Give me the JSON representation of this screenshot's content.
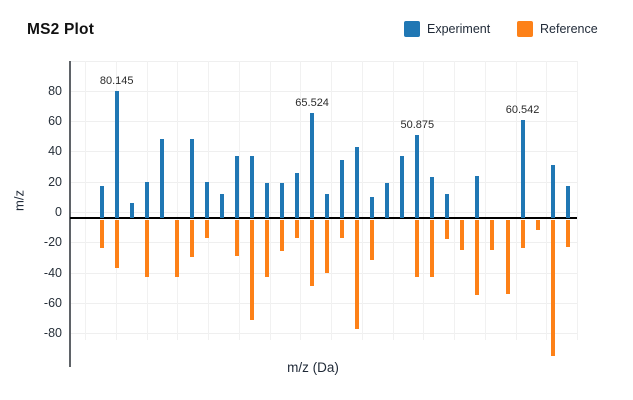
{
  "title": "MS2 Plot",
  "legend": {
    "items": [
      {
        "label": "Experiment",
        "color": "#2077b4"
      },
      {
        "label": "Reference",
        "color": "#fd8118"
      }
    ]
  },
  "axes": {
    "ylabel": "m/z",
    "xlabel": "m/z (Da)"
  },
  "chart_data": {
    "type": "bar",
    "subtype": "mirror-mass-spectrum",
    "title": "MS2 Plot",
    "xlabel": "m/z (Da)",
    "ylabel": "m/z",
    "grid": true,
    "legend_position": "top-right",
    "ylim": [
      -100,
      100
    ],
    "yticks": [
      80,
      60,
      40,
      20,
      0,
      -20,
      -40,
      -60,
      -80
    ],
    "n_peaks": 32,
    "series": [
      {
        "name": "Experiment",
        "color": "#2077b4",
        "direction": "up",
        "values": [
          17,
          80.145,
          6,
          20,
          48,
          null,
          48,
          20,
          12,
          37,
          37,
          19,
          19,
          26,
          65.524,
          12,
          34,
          43,
          10,
          19,
          37,
          50.875,
          23,
          12,
          null,
          24,
          null,
          null,
          60.542,
          null,
          31,
          17
        ]
      },
      {
        "name": "Reference",
        "color": "#fd8118",
        "direction": "down",
        "values": [
          -24,
          -37,
          null,
          -43,
          null,
          -43,
          -30,
          -17,
          null,
          -29,
          -71,
          -43,
          -26,
          -17,
          -49,
          -40,
          -17,
          -77,
          -32,
          null,
          null,
          -43,
          -43,
          -18,
          -25,
          -55,
          -25,
          -54,
          -24,
          -12,
          -95,
          -23
        ]
      }
    ],
    "annotations": [
      {
        "text": "80.145",
        "series": "Experiment",
        "index": 1
      },
      {
        "text": "65.524",
        "series": "Experiment",
        "index": 14
      },
      {
        "text": "50.875",
        "series": "Experiment",
        "index": 21
      },
      {
        "text": "60.542",
        "series": "Experiment",
        "index": 28
      }
    ]
  }
}
